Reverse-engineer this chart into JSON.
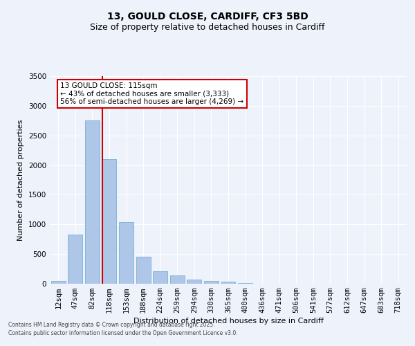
{
  "title1": "13, GOULD CLOSE, CARDIFF, CF3 5BD",
  "title2": "Size of property relative to detached houses in Cardiff",
  "xlabel": "Distribution of detached houses by size in Cardiff",
  "ylabel": "Number of detached properties",
  "bar_color": "#aec6e8",
  "bar_edge_color": "#7aafd4",
  "background_color": "#eef2fb",
  "grid_color": "#ffffff",
  "categories": [
    "12sqm",
    "47sqm",
    "82sqm",
    "118sqm",
    "153sqm",
    "188sqm",
    "224sqm",
    "259sqm",
    "294sqm",
    "330sqm",
    "365sqm",
    "400sqm",
    "436sqm",
    "471sqm",
    "506sqm",
    "541sqm",
    "577sqm",
    "612sqm",
    "647sqm",
    "683sqm",
    "718sqm"
  ],
  "values": [
    50,
    830,
    2750,
    2100,
    1040,
    460,
    210,
    135,
    75,
    50,
    30,
    10,
    5,
    2,
    1,
    1,
    0,
    0,
    0,
    0,
    0
  ],
  "property_line_index": 3,
  "property_line_color": "#cc0000",
  "annotation_text": "13 GOULD CLOSE: 115sqm\n← 43% of detached houses are smaller (3,333)\n56% of semi-detached houses are larger (4,269) →",
  "ylim": [
    0,
    3500
  ],
  "yticks": [
    0,
    500,
    1000,
    1500,
    2000,
    2500,
    3000,
    3500
  ],
  "footer1": "Contains HM Land Registry data © Crown copyright and database right 2025.",
  "footer2": "Contains public sector information licensed under the Open Government Licence v3.0."
}
